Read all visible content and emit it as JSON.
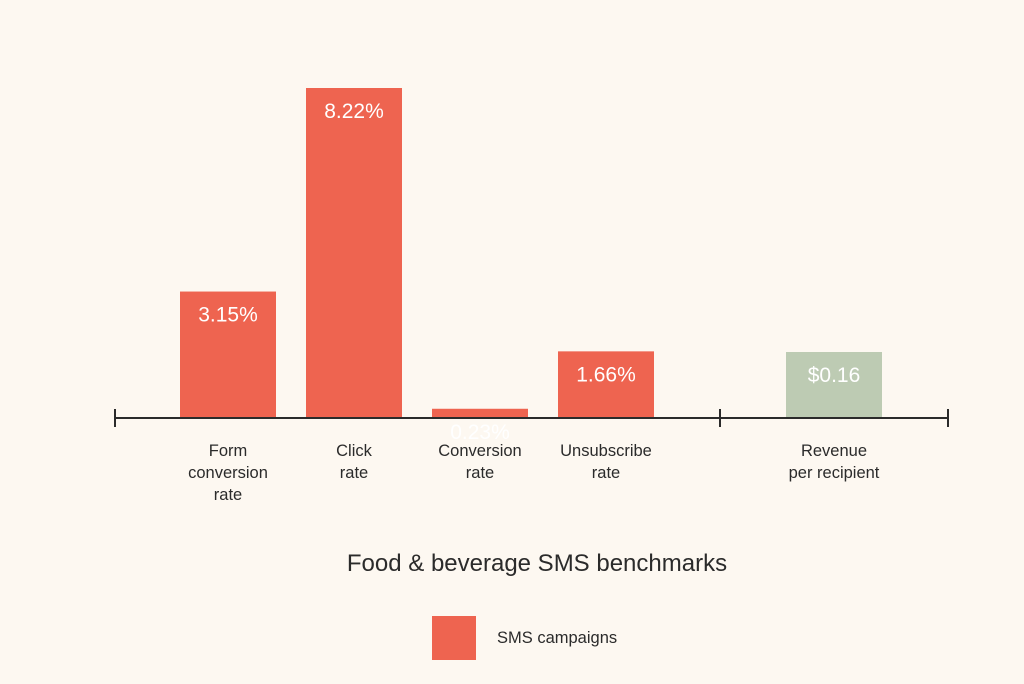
{
  "chart_data": {
    "type": "bar",
    "title": "Food & beverage SMS benchmarks",
    "categories": [
      [
        "Form",
        "conversion",
        "rate"
      ],
      [
        "Click",
        "rate"
      ],
      [
        "Conversion",
        "rate"
      ],
      [
        "Unsubscribe",
        "rate"
      ],
      [
        "Revenue",
        "per recipient"
      ]
    ],
    "groups": [
      {
        "unit": "percent",
        "bars": [
          {
            "value": 3.15,
            "label": "3.15%"
          },
          {
            "value": 8.22,
            "label": "8.22%"
          },
          {
            "value": 0.23,
            "label": "0.23%"
          },
          {
            "value": 1.66,
            "label": "1.66%"
          }
        ]
      },
      {
        "unit": "usd",
        "bars": [
          {
            "value": 0.16,
            "label": "$0.16"
          }
        ]
      }
    ],
    "legend": [
      {
        "label": "SMS campaigns",
        "color": "#ee6450"
      }
    ],
    "colors": {
      "primary": "#ee6450",
      "secondary": "#bdcbb3",
      "axis": "#2b2b2b",
      "background": "#fdf8f1"
    }
  }
}
